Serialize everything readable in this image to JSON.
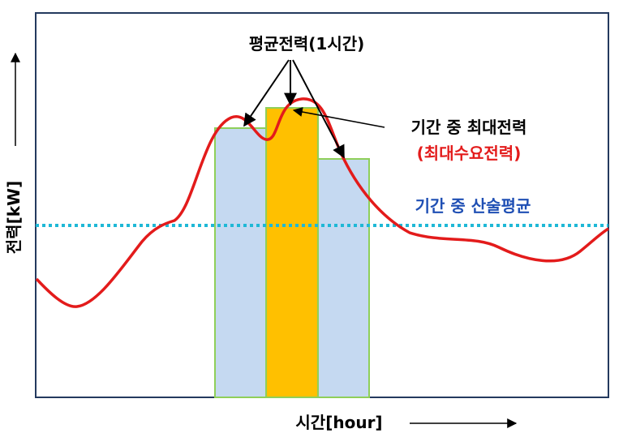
{
  "colors": {
    "demand_curve": "#e31b1b",
    "hourly_bar_fill": "#c5d9f1",
    "peak_bar_fill": "#ffc000",
    "bar_stroke": "#8fcf5a",
    "mean_line": "#1fb8d6",
    "mean_label": "#1f4fb4",
    "peak_label_secondary": "#e31b1b",
    "frame": "#243a5e"
  },
  "labels": {
    "hourly_avg": "평균전력(1시간)",
    "period_max": "기간 중 최대전력",
    "peak_demand": "(최대수요전력)",
    "arith_mean": "기간 중 산술평균",
    "y_axis": "전력[kW]",
    "x_axis": "시간[hour]"
  }
}
